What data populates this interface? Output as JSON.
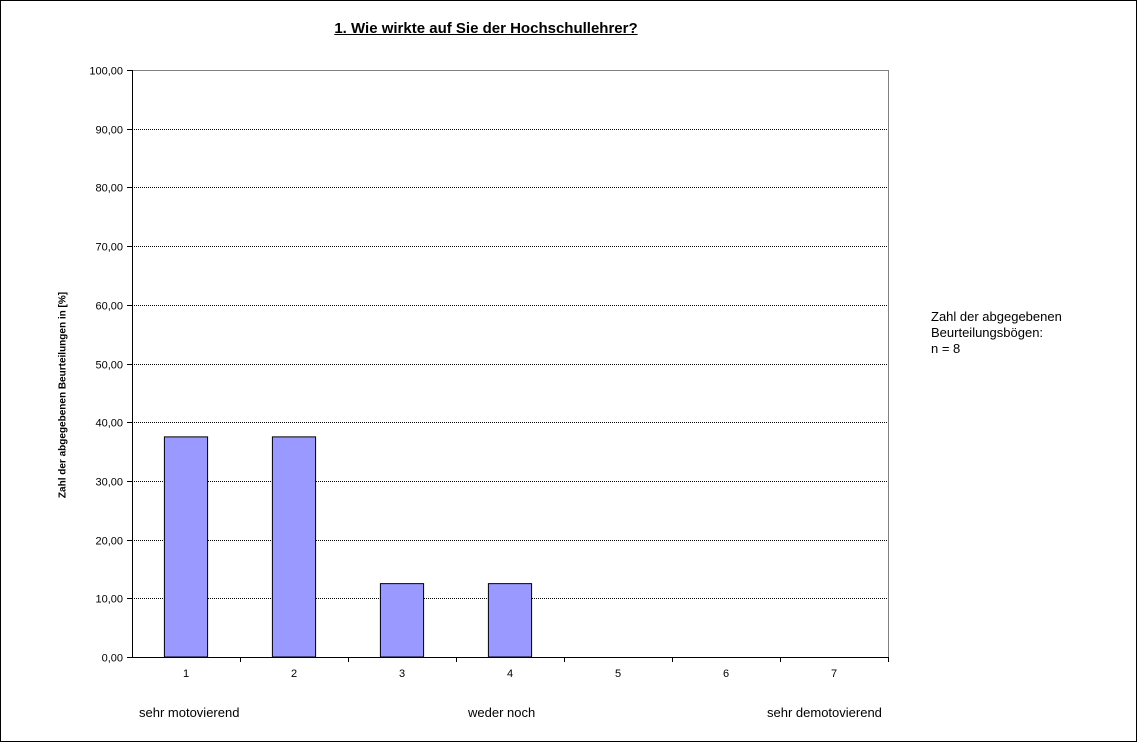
{
  "chart_data": {
    "type": "bar",
    "title": "1. Wie wirkte auf Sie der Hochschullehrer?",
    "ylabel": "Zahl der abgegebenen Beurteilungen in [%]",
    "xlabel": "",
    "categories": [
      "1",
      "2",
      "3",
      "4",
      "5",
      "6",
      "7"
    ],
    "values": [
      37.5,
      37.5,
      12.5,
      12.5,
      0,
      0,
      0
    ],
    "ylim": [
      0,
      100
    ],
    "yticks": [
      "0,00",
      "10,00",
      "20,00",
      "30,00",
      "40,00",
      "50,00",
      "60,00",
      "70,00",
      "80,00",
      "90,00",
      "100,00"
    ],
    "grid": true,
    "bar_color": "#9999ff",
    "legend": "none",
    "scale_labels": {
      "left": "sehr motovierend",
      "middle": "weder noch",
      "right": "sehr demotovierend"
    },
    "note": {
      "line1": "Zahl der abgegebenen",
      "line2": "Beurteilungsbögen:",
      "line3": "n = 8"
    }
  }
}
